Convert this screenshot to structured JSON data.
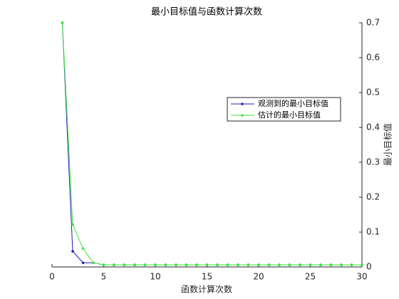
{
  "chart_data": {
    "type": "line",
    "title": "最小目标值与函数计算次数",
    "x_label": "函数计算次数",
    "y_label": "最小目标值",
    "x": [
      1,
      2,
      3,
      4,
      5,
      6,
      7,
      8,
      9,
      10,
      11,
      12,
      13,
      14,
      15,
      16,
      17,
      18,
      19,
      20,
      21,
      22,
      23,
      24,
      25,
      26,
      27,
      28,
      29,
      30
    ],
    "series": [
      {
        "name": "观测到的最小目标值",
        "color": "#1f1fb8",
        "values": [
          0.7,
          0.045,
          0.012,
          0.012,
          0.006,
          0.006,
          0.006,
          0.006,
          0.006,
          0.006,
          0.006,
          0.006,
          0.006,
          0.006,
          0.006,
          0.006,
          0.006,
          0.006,
          0.006,
          0.006,
          0.006,
          0.006,
          0.006,
          0.006,
          0.006,
          0.006,
          0.006,
          0.006,
          0.006,
          0.006
        ]
      },
      {
        "name": "估计的最小目标值",
        "color": "#3de63d",
        "values": [
          0.7,
          0.122,
          0.053,
          0.012,
          0.006,
          0.006,
          0.006,
          0.006,
          0.006,
          0.006,
          0.006,
          0.006,
          0.006,
          0.006,
          0.006,
          0.006,
          0.006,
          0.006,
          0.006,
          0.006,
          0.006,
          0.006,
          0.006,
          0.006,
          0.006,
          0.006,
          0.006,
          0.006,
          0.006,
          0.006
        ]
      }
    ],
    "xlim": [
      0,
      30
    ],
    "xticks": [
      0,
      5,
      10,
      15,
      20,
      25,
      30
    ],
    "ylim": [
      0,
      0.7
    ],
    "yticks": [
      0,
      0.1,
      0.2,
      0.3,
      0.4,
      0.5,
      0.6,
      0.7
    ],
    "y_axis_side": "right",
    "legend_position": "right"
  }
}
